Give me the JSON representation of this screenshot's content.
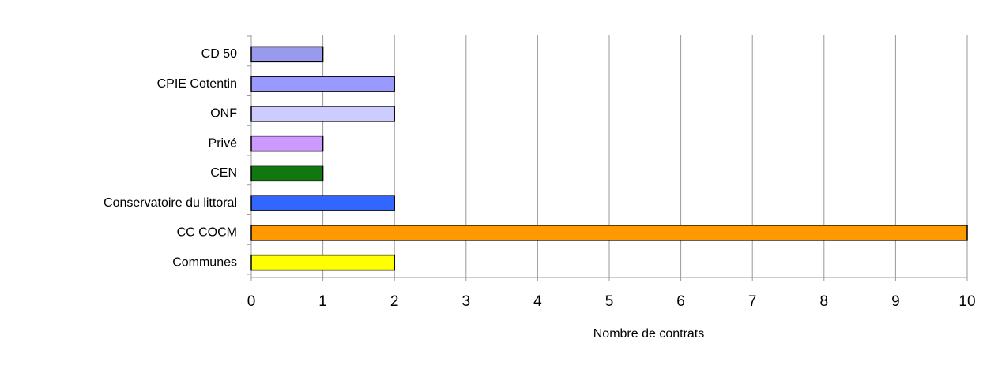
{
  "chart_data": {
    "type": "barh",
    "categories": [
      "CD 50",
      "CPIE Cotentin",
      "ONF",
      "Privé",
      "CEN",
      "Conservatoire du littoral",
      "CC COCM",
      "Communes"
    ],
    "values": [
      1,
      2,
      2,
      1,
      1,
      2,
      10,
      2
    ],
    "colors": [
      "#9999ee",
      "#9999ff",
      "#ccccff",
      "#cc99ff",
      "#117711",
      "#3366ff",
      "#ff9900",
      "#ffff00"
    ],
    "xlabel": "Nombre de contrats",
    "xlim": [
      0,
      10
    ],
    "xticks": [
      0,
      1,
      2,
      3,
      4,
      5,
      6,
      7,
      8,
      9,
      10
    ],
    "grid": true
  }
}
